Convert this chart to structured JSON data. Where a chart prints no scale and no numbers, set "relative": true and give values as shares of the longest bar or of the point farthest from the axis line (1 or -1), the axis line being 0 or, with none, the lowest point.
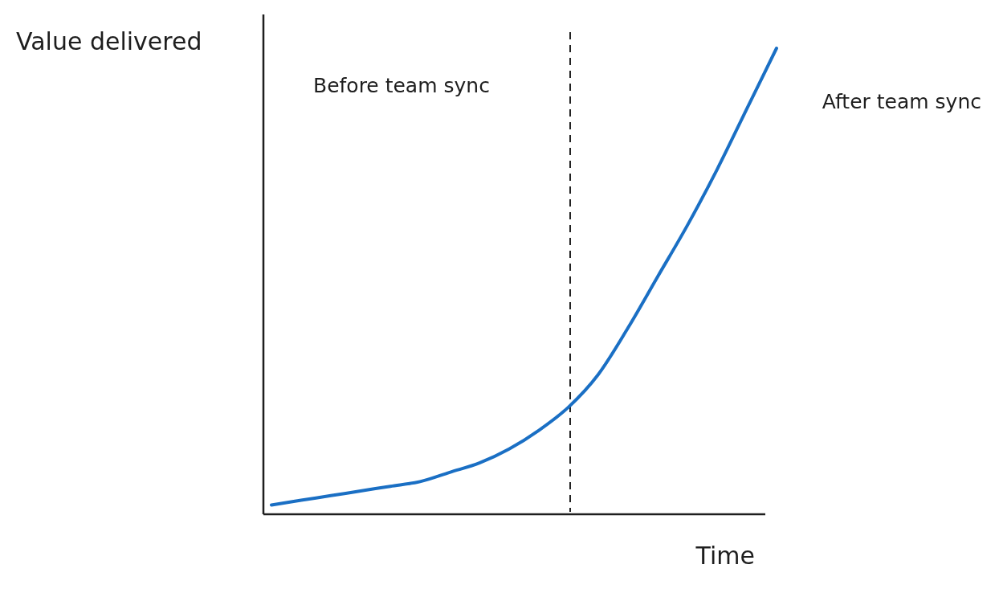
{
  "chart_data": {
    "type": "line",
    "relative": true,
    "xlabel": "Time",
    "ylabel": "Value delivered",
    "categories": [
      null,
      null,
      null,
      null,
      null,
      null,
      null,
      null,
      null,
      null,
      null,
      null,
      null,
      null,
      null,
      null,
      null,
      null
    ],
    "series": [
      {
        "color": "#1a6fc4",
        "values": [
          0.02,
          0.03,
          0.04,
          0.05,
          0.06,
          0.07,
          0.09,
          0.11,
          0.14,
          0.18,
          0.23,
          0.3,
          0.4,
          0.51,
          0.62,
          0.74,
          0.87,
          1
        ]
      }
    ],
    "annotations": [
      "Before team sync",
      "After team sync"
    ],
    "marker": "none",
    "line_style": "solid",
    "grid": false
  }
}
